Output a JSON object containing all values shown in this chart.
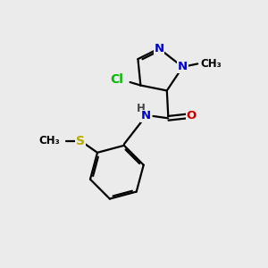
{
  "bg_color": "#ebebeb",
  "bond_color": "#000000",
  "bond_width": 1.6,
  "atom_colors": {
    "N": "#0000cc",
    "O": "#cc0000",
    "Cl": "#00bb00",
    "S": "#bbaa00",
    "C": "#000000",
    "H": "#444444"
  }
}
